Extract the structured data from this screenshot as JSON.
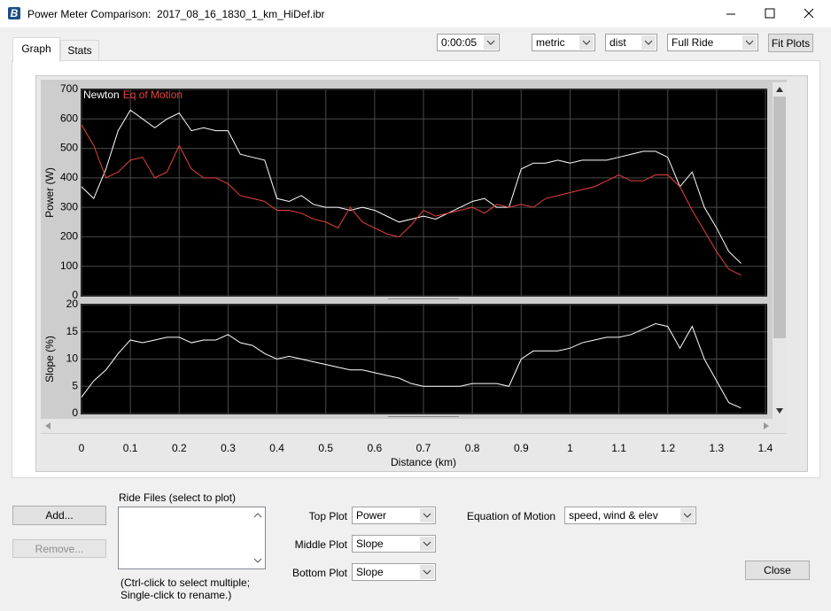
{
  "window": {
    "title": "Power Meter Comparison:  2017_08_16_1830_1_km_HiDef.ibr"
  },
  "tabs": [
    "Graph",
    "Stats"
  ],
  "toolbar": {
    "interval": "0:00:05",
    "units": "metric",
    "x_axis": "dist",
    "range": "Full Ride",
    "fit_button": "Fit Plots"
  },
  "chart_data": [
    {
      "type": "line",
      "ylabel": "Power (W)",
      "grid": true,
      "x": [
        0,
        0.025,
        0.05,
        0.075,
        0.1,
        0.125,
        0.15,
        0.175,
        0.2,
        0.225,
        0.25,
        0.275,
        0.3,
        0.325,
        0.35,
        0.375,
        0.4,
        0.425,
        0.45,
        0.475,
        0.5,
        0.525,
        0.55,
        0.575,
        0.6,
        0.625,
        0.65,
        0.675,
        0.7,
        0.725,
        0.75,
        0.775,
        0.8,
        0.825,
        0.85,
        0.875,
        0.9,
        0.925,
        0.95,
        0.975,
        1.0,
        1.025,
        1.05,
        1.075,
        1.1,
        1.125,
        1.15,
        1.175,
        1.2,
        1.225,
        1.25,
        1.275,
        1.3,
        1.325,
        1.35
      ],
      "xlim": [
        0,
        1.4
      ],
      "xticks": [
        0,
        0.1,
        0.2,
        0.3,
        0.4,
        0.5,
        0.6,
        0.7,
        0.8,
        0.9,
        1,
        1.1,
        1.2,
        1.3,
        1.4
      ],
      "ylim": [
        0,
        700
      ],
      "yticks": [
        0,
        100,
        200,
        300,
        400,
        500,
        600,
        700
      ],
      "series": [
        {
          "name": "Newton",
          "color": "#ffffff",
          "values": [
            370,
            330,
            430,
            560,
            630,
            600,
            570,
            600,
            620,
            560,
            570,
            560,
            560,
            480,
            470,
            460,
            330,
            320,
            340,
            310,
            300,
            300,
            290,
            300,
            290,
            270,
            250,
            260,
            270,
            260,
            280,
            300,
            320,
            330,
            300,
            300,
            430,
            450,
            450,
            460,
            450,
            460,
            460,
            460,
            470,
            480,
            490,
            490,
            470,
            370,
            420,
            300,
            230,
            150,
            110
          ]
        },
        {
          "name": "Eq of Motion",
          "color": "#e8413c",
          "values": [
            580,
            510,
            400,
            420,
            460,
            470,
            400,
            420,
            510,
            430,
            400,
            400,
            380,
            340,
            330,
            320,
            290,
            290,
            280,
            260,
            250,
            230,
            300,
            250,
            230,
            210,
            200,
            240,
            290,
            270,
            280,
            290,
            300,
            280,
            310,
            300,
            310,
            300,
            330,
            340,
            350,
            360,
            370,
            390,
            410,
            390,
            390,
            410,
            410,
            370,
            290,
            220,
            150,
            90,
            70
          ]
        }
      ]
    },
    {
      "type": "line",
      "ylabel": "Slope (%)",
      "xlabel": "Distance (km)",
      "grid": true,
      "color": "#ffffff",
      "x": [
        0,
        0.025,
        0.05,
        0.075,
        0.1,
        0.125,
        0.15,
        0.175,
        0.2,
        0.225,
        0.25,
        0.275,
        0.3,
        0.325,
        0.35,
        0.375,
        0.4,
        0.425,
        0.45,
        0.475,
        0.5,
        0.525,
        0.55,
        0.575,
        0.6,
        0.625,
        0.65,
        0.675,
        0.7,
        0.725,
        0.75,
        0.775,
        0.8,
        0.825,
        0.85,
        0.875,
        0.9,
        0.925,
        0.95,
        0.975,
        1.0,
        1.025,
        1.05,
        1.075,
        1.1,
        1.125,
        1.15,
        1.175,
        1.2,
        1.225,
        1.25,
        1.275,
        1.3,
        1.325,
        1.35
      ],
      "values": [
        3,
        6,
        8,
        11,
        13.5,
        13,
        13.5,
        14,
        14,
        13,
        13.5,
        13.5,
        14.5,
        13,
        12.5,
        11,
        10,
        10.5,
        10,
        9.5,
        9,
        8.5,
        8,
        8,
        7.5,
        7,
        6.5,
        5.5,
        5,
        5,
        5,
        5,
        5.5,
        5.5,
        5.5,
        5,
        10,
        11.5,
        11.5,
        11.5,
        12,
        13,
        13.5,
        14,
        14,
        14.5,
        15.5,
        16.5,
        16,
        12,
        16,
        10,
        6,
        2,
        1
      ],
      "xlim": [
        0,
        1.4
      ],
      "xticks": [
        0,
        0.1,
        0.2,
        0.3,
        0.4,
        0.5,
        0.6,
        0.7,
        0.8,
        0.9,
        1,
        1.1,
        1.2,
        1.3,
        1.4
      ],
      "ylim": [
        0,
        20
      ],
      "yticks": [
        0,
        5,
        10,
        15,
        20
      ]
    }
  ],
  "ride_files": {
    "add_button": "Add...",
    "remove_button": "Remove...",
    "label": "Ride Files (select to plot)",
    "note": [
      "(Ctrl-click to select multiple;",
      "Single-click to rename.)"
    ]
  },
  "plots": [
    {
      "label": "Top Plot",
      "value": "Power"
    },
    {
      "label": "Middle Plot",
      "value": "Slope"
    },
    {
      "label": "Bottom Plot",
      "value": "Slope"
    }
  ],
  "equation_of_motion": {
    "label": "Equation of Motion",
    "value": "speed, wind & elev"
  },
  "close_button": "Close"
}
